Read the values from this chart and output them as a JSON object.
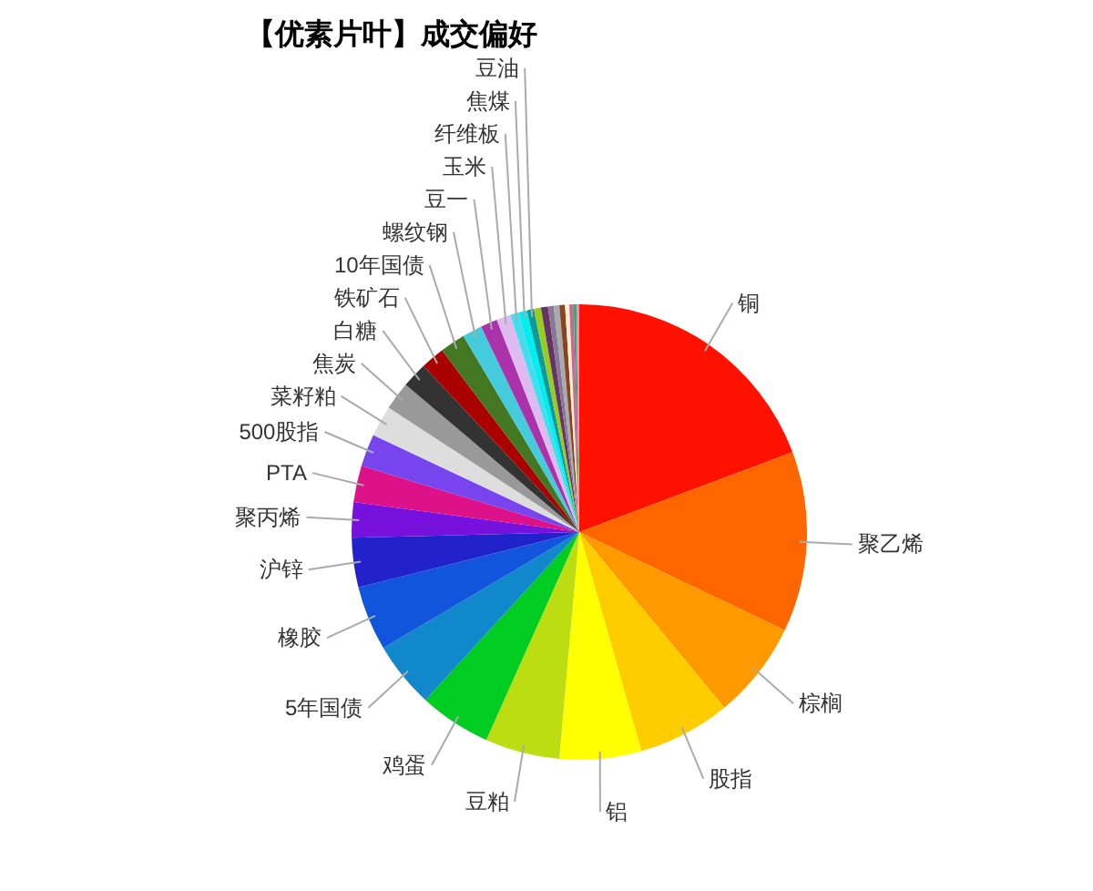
{
  "chart_data": {
    "type": "pie",
    "title": "【优素片叶】成交偏好",
    "categories": [
      "铜",
      "聚乙烯",
      "棕榈",
      "股指",
      "铝",
      "豆粕",
      "鸡蛋",
      "5年国债",
      "橡胶",
      "沪锌",
      "聚丙烯",
      "PTA",
      "500股指",
      "菜籽粕",
      "焦炭",
      "白糖",
      "铁矿石",
      "10年国债",
      "螺纹钢",
      "豆一",
      "玉米",
      "纤维板",
      "焦煤",
      "豆油",
      null,
      null,
      null,
      null,
      null,
      null,
      null,
      null,
      null
    ],
    "values": [
      19.3,
      12.8,
      6.9,
      6.6,
      5.8,
      5.3,
      5.1,
      4.7,
      4.6,
      3.5,
      2.5,
      2.6,
      2.3,
      2.2,
      2.0,
      1.8,
      1.7,
      1.8,
      1.4,
      1.2,
      1.0,
      0.6,
      0.6,
      0.5,
      0.5,
      0.5,
      0.4,
      0.4,
      0.4,
      0.3,
      0.3,
      0.2,
      0.2
    ],
    "colors": [
      "#ff1100",
      "#ff6600",
      "#ff9900",
      "#ffcc00",
      "#ffff00",
      "#bbdd11",
      "#00cc22",
      "#1188cc",
      "#1155dd",
      "#2222cc",
      "#7711dd",
      "#dd1188",
      "#7744ee",
      "#dddddd",
      "#999999",
      "#333333",
      "#aa0000",
      "#447722",
      "#44ccdd",
      "#aa33aa",
      "#ddbbee",
      "#44ddee",
      "#00eeee",
      "#119999",
      "#99cc22",
      "#663366",
      "#887799",
      "#aaaaaa",
      "#884422",
      "#ffeecc",
      "#cc6699",
      "#33aa66",
      "#ee88cc"
    ]
  }
}
